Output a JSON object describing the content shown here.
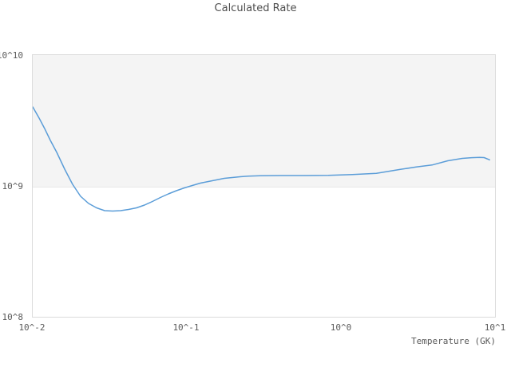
{
  "title": "Calculated Rate",
  "axes": {
    "x": {
      "label": "Temperature (GK)",
      "ticks": [
        "10^-2",
        "10^-1",
        "10^0",
        "10^1"
      ]
    },
    "y": {
      "ticks": [
        "10^8",
        "10^9",
        "10^10"
      ]
    }
  },
  "colors": {
    "line": "#5b9dd8",
    "band": "#f4f4f4",
    "plot_border": "#dcdcdc",
    "gridline": "#e8e8e8",
    "title_text": "#4d4d4d",
    "tick_text": "#5a5a5a"
  },
  "chart_data": {
    "type": "line",
    "title": "Calculated Rate",
    "xlabel": "Temperature (GK)",
    "ylabel": "",
    "x_scale": "log",
    "y_scale": "log",
    "xlim": [
      0.01,
      10
    ],
    "ylim": [
      100000000.0,
      10500000000.0
    ],
    "x_tick_labels": [
      "10^-2",
      "10^-1",
      "10^0",
      "10^1"
    ],
    "y_tick_labels": [
      "10^8",
      "10^9",
      "10^10"
    ],
    "grid": "off",
    "shaded_band_y": [
      1000000000.0,
      10500000000.0
    ],
    "legend_position": "none",
    "series": [
      {
        "name": "Calculated Rate",
        "x": [
          0.01,
          0.011,
          0.012,
          0.013,
          0.0143,
          0.0161,
          0.0181,
          0.0204,
          0.023,
          0.0259,
          0.0292,
          0.0329,
          0.037,
          0.0417,
          0.0469,
          0.0529,
          0.0595,
          0.067,
          0.0755,
          0.085,
          0.0958,
          0.1078,
          0.1215,
          0.1368,
          0.1541,
          0.1735,
          0.1954,
          0.2201,
          0.2478,
          0.2962,
          0.399,
          0.571,
          0.817,
          1.17,
          1.674,
          2.396,
          3.031,
          3.836,
          4.854,
          6.021,
          6.93,
          7.78,
          8.341,
          9.053
        ],
        "y": [
          4130000000.0,
          3390000000.0,
          2790000000.0,
          2290000000.0,
          1855000000.0,
          1381000000.0,
          1058000000.0,
          857000000.0,
          755000000.0,
          699000000.0,
          666000000.0,
          661000000.0,
          666000000.0,
          680000000.0,
          699000000.0,
          734000000.0,
          782000000.0,
          839000000.0,
          894000000.0,
          945000000.0,
          993000000.0,
          1036000000.0,
          1080000000.0,
          1111000000.0,
          1143000000.0,
          1175000000.0,
          1192000000.0,
          1209000000.0,
          1222000000.0,
          1231000000.0,
          1234000000.0,
          1234000000.0,
          1238000000.0,
          1256000000.0,
          1282000000.0,
          1375000000.0,
          1435000000.0,
          1486000000.0,
          1601000000.0,
          1670000000.0,
          1691000000.0,
          1700000000.0,
          1693000000.0,
          1628000000.0
        ]
      }
    ]
  }
}
